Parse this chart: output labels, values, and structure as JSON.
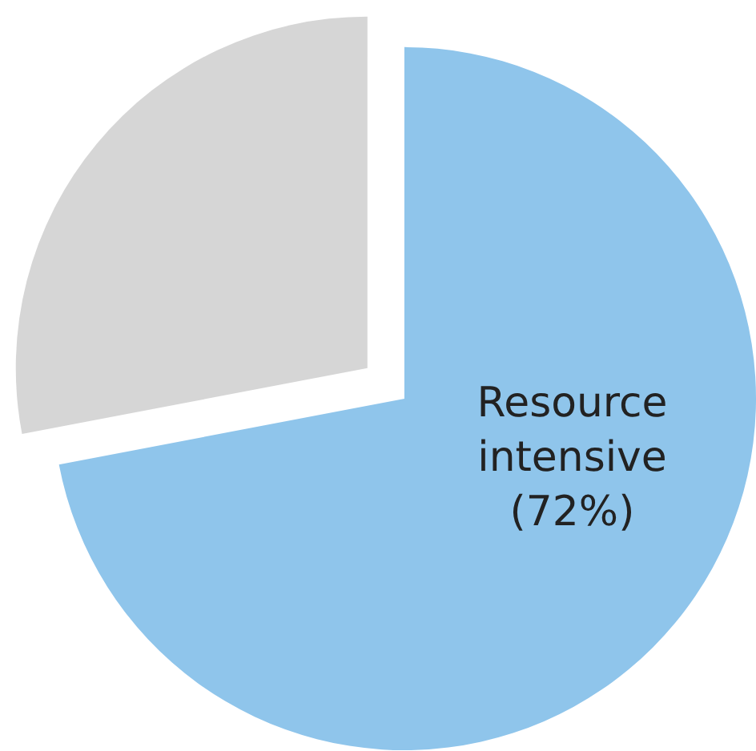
{
  "chart_data": {
    "type": "pie",
    "categories": [
      "Resource intensive",
      null
    ],
    "values": [
      72,
      28
    ],
    "colors": [
      "#8fc5eb",
      "#d6d6d6"
    ],
    "value_labels": [
      "(72%)",
      null
    ],
    "legend": false
  }
}
